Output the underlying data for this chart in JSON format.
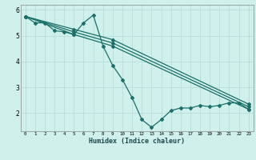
{
  "xlabel": "Humidex (Indice chaleur)",
  "bg_color": "#cff0eb",
  "line_color": "#1a7068",
  "grid_color": "#b8ddd8",
  "xlim": [
    -0.5,
    23.5
  ],
  "ylim": [
    1.3,
    6.2
  ],
  "xticks": [
    0,
    1,
    2,
    3,
    4,
    5,
    6,
    7,
    8,
    9,
    10,
    11,
    12,
    13,
    14,
    15,
    16,
    17,
    18,
    19,
    20,
    21,
    22,
    23
  ],
  "yticks": [
    2,
    3,
    4,
    5,
    6
  ],
  "line1_x": [
    0,
    1,
    2,
    3,
    4,
    5,
    6,
    7,
    8,
    9,
    10,
    11,
    12,
    13,
    14,
    15,
    16,
    17,
    18,
    19,
    20,
    21,
    22,
    23
  ],
  "line1_y": [
    5.75,
    5.5,
    5.5,
    5.2,
    5.15,
    5.05,
    5.5,
    5.8,
    4.6,
    3.85,
    3.3,
    2.6,
    1.75,
    1.45,
    1.75,
    2.1,
    2.2,
    2.2,
    2.3,
    2.25,
    2.3,
    2.4,
    2.4,
    2.15
  ],
  "line2_x": [
    0,
    5,
    9,
    23
  ],
  "line2_y": [
    5.75,
    5.05,
    4.6,
    2.15
  ],
  "line3_x": [
    0,
    5,
    9,
    23
  ],
  "line3_y": [
    5.75,
    5.15,
    4.72,
    2.25
  ],
  "line4_x": [
    0,
    5,
    9,
    23
  ],
  "line4_y": [
    5.75,
    5.25,
    4.85,
    2.35
  ]
}
